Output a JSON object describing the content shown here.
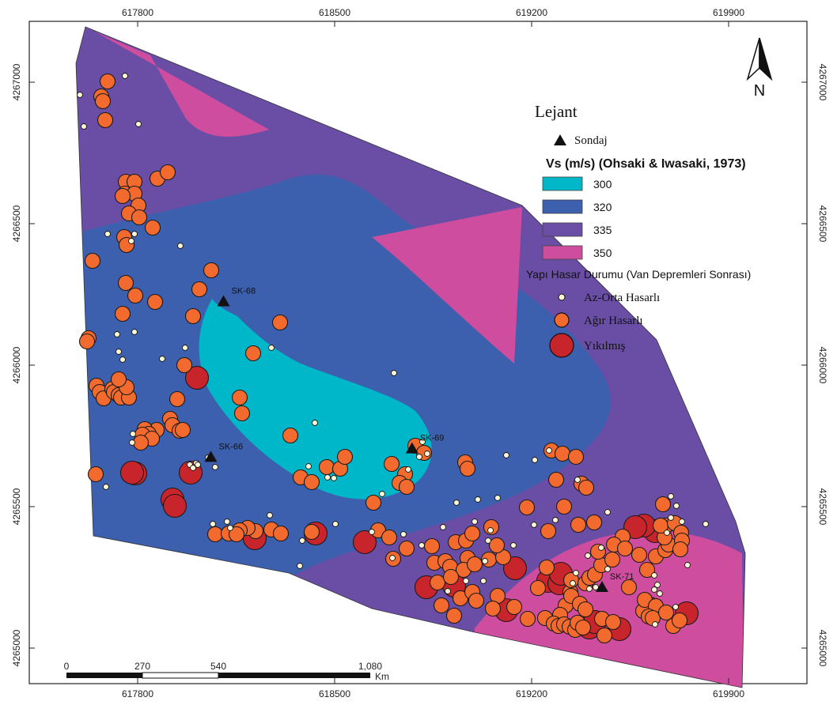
{
  "map": {
    "x_ticks": [
      "617800",
      "618500",
      "619200",
      "619900"
    ],
    "y_ticks": [
      "4267000",
      "4266500",
      "4266000",
      "4265500",
      "4265000"
    ],
    "north_label": "N",
    "zone_colors": {
      "300": "#00b7c9",
      "320": "#3c5fae",
      "335": "#6a4ea6",
      "350": "#cf4d9f"
    }
  },
  "legend": {
    "title": "Lejant",
    "borehole_label": "Sondaj",
    "vs_title": "Vs (m/s) (Ohsaki & Iwasaki, 1973)",
    "vs_classes": [
      {
        "value": "300",
        "color": "#00b7c9"
      },
      {
        "value": "320",
        "color": "#3c5fae"
      },
      {
        "value": "335",
        "color": "#6a4ea6"
      },
      {
        "value": "350",
        "color": "#cf4d9f"
      }
    ],
    "damage_title": "Yapı Hasar Durumu (Van Depremleri Sonrası)",
    "damage_classes": [
      {
        "label": "Az-Orta Hasarlı",
        "color": "#fdf7d8"
      },
      {
        "label": "Ağır Hasarlı",
        "color": "#f26a2e"
      },
      {
        "label": "Yıkılmış",
        "color": "#c8242b"
      }
    ]
  },
  "boreholes": [
    {
      "id": "SK-68",
      "x": 618105,
      "y": 4266225
    },
    {
      "id": "SK-66",
      "x": 618060,
      "y": 4265675
    },
    {
      "id": "SK-69",
      "x": 618775,
      "y": 4265705
    },
    {
      "id": "SK-71",
      "x": 619450,
      "y": 4265215
    }
  ],
  "scale_bar": {
    "labels": [
      "0",
      "270",
      "540",
      "1,080"
    ],
    "unit": "Km"
  }
}
